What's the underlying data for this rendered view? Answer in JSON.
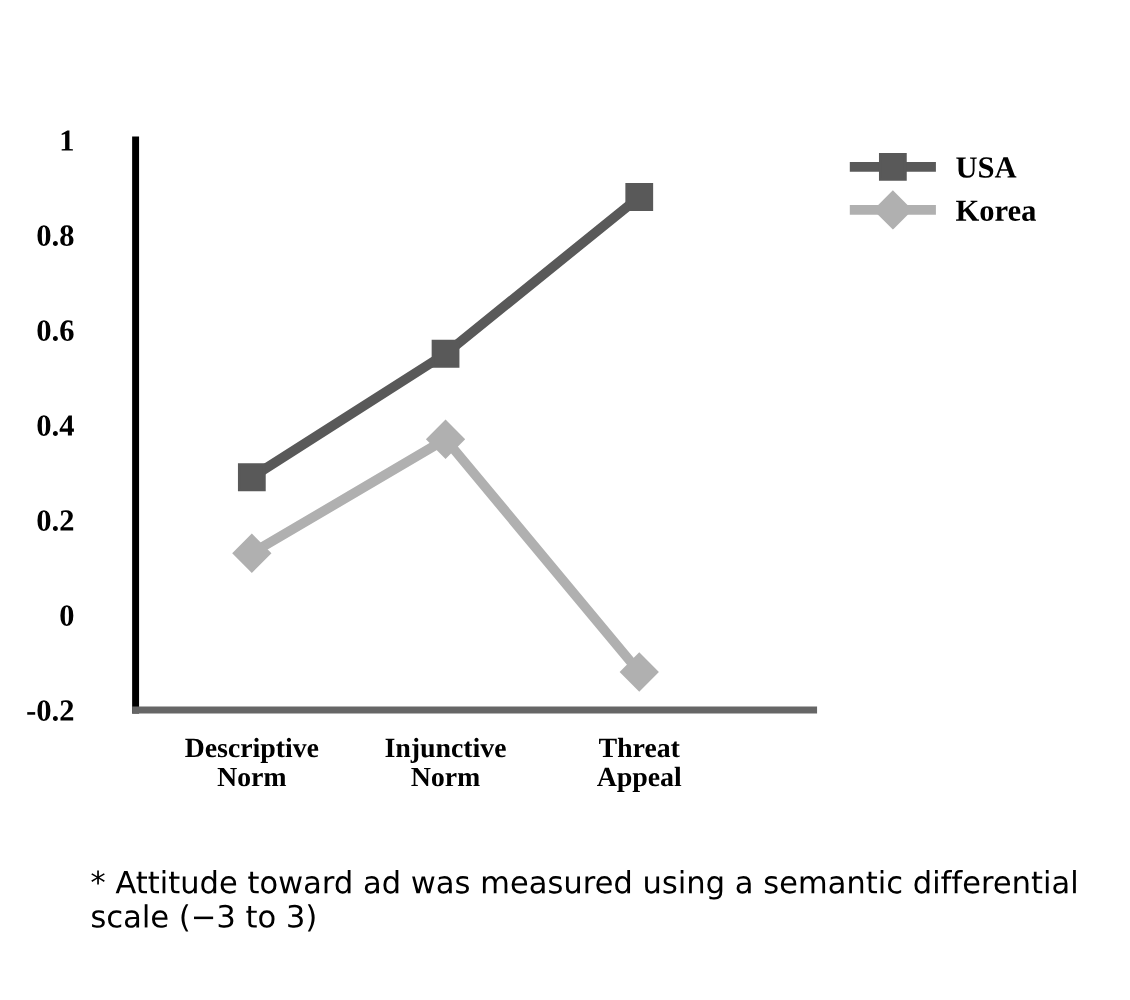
{
  "chart_data": {
    "type": "line",
    "categories": [
      "Descriptive\nNorm",
      "Injunctive\nNorm",
      "Threat\nAppeal"
    ],
    "series": [
      {
        "name": "USA",
        "color": "#595959",
        "marker": "square",
        "values": [
          0.29,
          0.55,
          0.88
        ]
      },
      {
        "name": "Korea",
        "color": "#b0b0b0",
        "marker": "diamond",
        "values": [
          0.13,
          0.37,
          -0.12
        ]
      }
    ],
    "ylim": [
      -0.2,
      1
    ],
    "yticks": [
      -0.2,
      0,
      0.2,
      0.4,
      0.6,
      0.8,
      1
    ],
    "grid": false,
    "legend": "top right",
    "line_style": "solid",
    "annotations": [
      "* Attitude toward ad was measured using a semantic differential scale (−3 to 3)"
    ]
  }
}
